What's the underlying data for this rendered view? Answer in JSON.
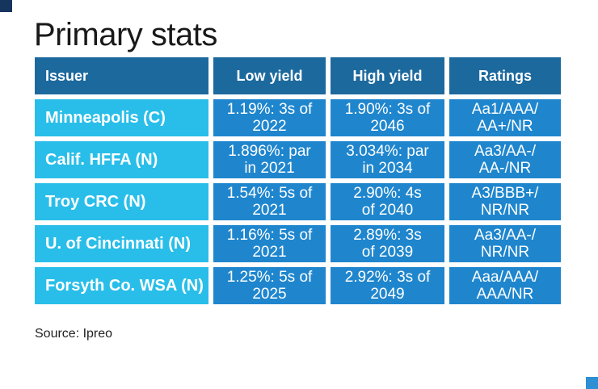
{
  "title": "Primary stats",
  "source": "Source: Ipreo",
  "colors": {
    "header_bg": "#1c699e",
    "issuer_bg": "#29bee9",
    "value_bg": "#1f86ce",
    "header_text": "#ffffff",
    "cell_text": "#ffffff",
    "title_text": "#191919",
    "source_text": "#1f1f1f",
    "corner_top_left": "#16355e",
    "corner_bottom_right": "#2e8fd5"
  },
  "table": {
    "headers": [
      "Issuer",
      "Low yield",
      "High yield",
      "Ratings"
    ],
    "rows": [
      {
        "issuer": "Minneapolis (C)",
        "low_yield": "1.19%: 3s of\n2022",
        "high_yield": "1.90%: 3s of\n2046",
        "ratings": "Aa1/AAA/\nAA+/NR"
      },
      {
        "issuer": "Calif. HFFA (N)",
        "low_yield": "1.896%: par\nin 2021",
        "high_yield": "3.034%: par\nin 2034",
        "ratings": "Aa3/AA-/\nAA-/NR"
      },
      {
        "issuer": "Troy CRC (N)",
        "low_yield": "1.54%: 5s of\n2021",
        "high_yield": "2.90%: 4s\nof 2040",
        "ratings": "A3/BBB+/\nNR/NR"
      },
      {
        "issuer": "U. of Cincinnati (N)",
        "low_yield": "1.16%: 5s of\n2021",
        "high_yield": "2.89%: 3s\nof 2039",
        "ratings": "Aa3/AA-/\nNR/NR"
      },
      {
        "issuer": "Forsyth Co. WSA (N)",
        "low_yield": "1.25%: 5s of\n2025",
        "high_yield": "2.92%: 3s of\n2049",
        "ratings": "Aaa/AAA/\nAAA/NR"
      }
    ]
  },
  "chart_data": {
    "type": "table",
    "title": "Primary stats",
    "columns": [
      "Issuer",
      "Low yield",
      "High yield",
      "Ratings"
    ],
    "rows": [
      [
        "Minneapolis (C)",
        "1.19%: 3s of 2022",
        "1.90%: 3s of 2046",
        "Aa1/AAA/AA+/NR"
      ],
      [
        "Calif. HFFA (N)",
        "1.896%: par in 2021",
        "3.034%: par in 2034",
        "Aa3/AA-/AA-/NR"
      ],
      [
        "Troy CRC (N)",
        "1.54%: 5s of 2021",
        "2.90%: 4s of 2040",
        "A3/BBB+/NR/NR"
      ],
      [
        "U. of Cincinnati (N)",
        "1.16%: 5s of 2021",
        "2.89%: 3s of 2039",
        "Aa3/AA-/NR/NR"
      ],
      [
        "Forsyth Co. WSA (N)",
        "1.25%: 5s of 2025",
        "2.92%: 3s of 2049",
        "Aaa/AAA/AAA/NR"
      ]
    ],
    "source": "Source: Ipreo"
  }
}
